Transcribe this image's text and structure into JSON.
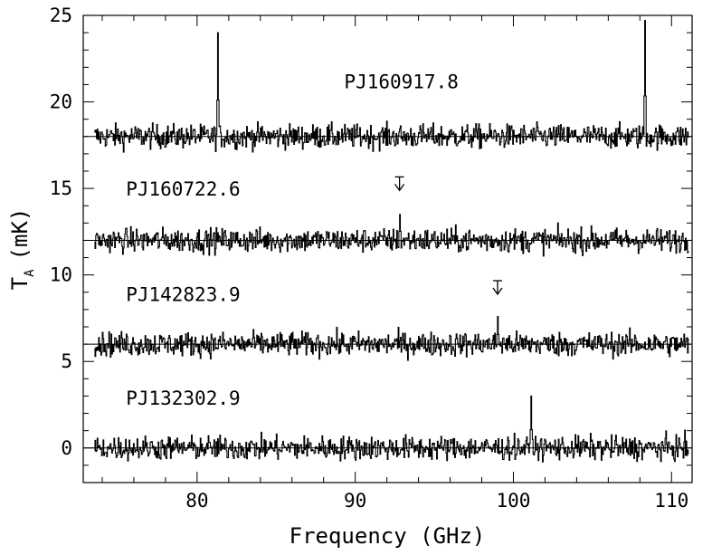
{
  "chart_data": {
    "type": "line",
    "title": "",
    "xlabel": "Frequency (GHz)",
    "ylabel": "T",
    "ylabel_subscript": "A",
    "ylabel_unit": "(mK)",
    "xlim": [
      72.8,
      111.3
    ],
    "ylim": [
      -2,
      25
    ],
    "xticks": [
      80,
      90,
      100,
      110
    ],
    "xtick_labels": [
      "80",
      "90",
      "100",
      "110"
    ],
    "yticks": [
      0,
      5,
      10,
      15,
      20,
      25
    ],
    "ytick_labels": [
      "0",
      "5",
      "10",
      "15",
      "20",
      "25"
    ],
    "grid": false,
    "noise_rms_mK": 0.35,
    "series": [
      {
        "name": "PJ160917.8",
        "baseline": 18,
        "label_anchor": [
          89.3,
          20.8
        ],
        "lines": [
          {
            "freq": 81.3,
            "peak": 24.0
          },
          {
            "freq": 108.3,
            "peak": 24.7
          }
        ],
        "markers": []
      },
      {
        "name": "PJ160722.6",
        "baseline": 12,
        "label_anchor": [
          75.5,
          14.6
        ],
        "lines": [
          {
            "freq": 92.8,
            "peak": 13.5
          }
        ],
        "markers": [
          {
            "freq": 92.8,
            "y": 15.3
          }
        ]
      },
      {
        "name": "PJ142823.9",
        "baseline": 6,
        "label_anchor": [
          75.5,
          8.5
        ],
        "lines": [
          {
            "freq": 99.0,
            "peak": 7.6
          }
        ],
        "markers": [
          {
            "freq": 99.0,
            "y": 9.3
          }
        ]
      },
      {
        "name": "PJ132302.9",
        "baseline": 0,
        "label_anchor": [
          75.5,
          2.5
        ],
        "lines": [
          {
            "freq": 101.1,
            "peak": 3.0
          }
        ],
        "markers": []
      }
    ]
  }
}
